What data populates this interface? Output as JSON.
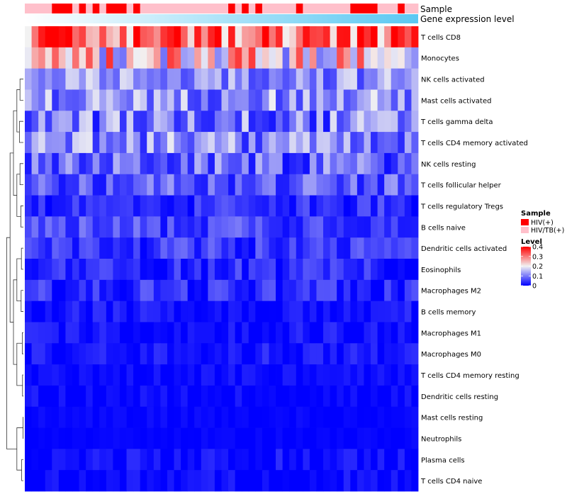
{
  "chart_data": {
    "type": "heatmap",
    "annotation_labels": [
      "Sample",
      "Gene expression level"
    ],
    "rows": [
      "T cells CD8",
      "Monocytes",
      "NK cells activated",
      "Mast cells activated",
      "T cells gamma delta",
      "T cells CD4 memory activated",
      "NK cells resting",
      "T cells follicular helper",
      "T cells regulatory  Tregs",
      "B cells naive",
      "Dendritic cells activated",
      "Eosinophils",
      "Macrophages M2",
      "B cells memory",
      "Macrophages M1",
      "Macrophages M0",
      "T cells CD4 memory resting",
      "Dendritic cells resting",
      "Mast cells resting",
      "Neutrophils",
      "Plasma cells",
      "T cells CD4 naive"
    ],
    "sample_groups": [
      1,
      1,
      1,
      1,
      0,
      0,
      0,
      1,
      0,
      1,
      0,
      1,
      0,
      0,
      0,
      1,
      0,
      1,
      1,
      1,
      1,
      1,
      1,
      1,
      1,
      1,
      1,
      1,
      1,
      1,
      0,
      1,
      0,
      1,
      0,
      1,
      1,
      1,
      1,
      1,
      0,
      1,
      1,
      1,
      1,
      1,
      1,
      1,
      0,
      0,
      0,
      0,
      1,
      1,
      1,
      0,
      1,
      1
    ],
    "legend": {
      "sample_title": "Sample",
      "sample_items": [
        {
          "label": "HIV(+)",
          "color": "#ff0000"
        },
        {
          "label": "HIV/TB(+)",
          "color": "#ffc0cb"
        }
      ],
      "level_title": "Level",
      "level_ticks": [
        {
          "value": 0.4,
          "label": "0.4"
        },
        {
          "value": 0.3,
          "label": "0.3"
        },
        {
          "value": 0.2,
          "label": "0.2"
        },
        {
          "value": 0.1,
          "label": "0.1"
        },
        {
          "value": 0,
          "label": "0"
        }
      ]
    },
    "color_scale": {
      "min": 0,
      "mid": 0.2,
      "max": 0.4,
      "low": "#0000ff",
      "midColor": "#f2f2f2",
      "high": "#ff0000"
    },
    "expression_gradient": {
      "from": "#5bc8f2",
      "to": "#ffffff"
    },
    "row_means": [
      0.32,
      0.22,
      0.12,
      0.12,
      0.1,
      0.11,
      0.08,
      0.07,
      0.035,
      0.06,
      0.045,
      0.03,
      0.035,
      0.012,
      0.012,
      0.012,
      0.006,
      0.006,
      0.003,
      0.002,
      0.008,
      0.006
    ],
    "row_spreads": [
      0.12,
      0.14,
      0.07,
      0.08,
      0.09,
      0.08,
      0.07,
      0.06,
      0.04,
      0.05,
      0.045,
      0.04,
      0.045,
      0.03,
      0.03,
      0.03,
      0.02,
      0.02,
      0.01,
      0.008,
      0.03,
      0.025
    ],
    "dendrogram": [
      {
        "a": 18,
        "b": 19,
        "h": 0.006
      },
      {
        "a": 20,
        "b": 21,
        "h": 0.03
      },
      {
        "a": 16,
        "b": 17,
        "h": 0.015
      },
      {
        "a": 14,
        "b": 15,
        "h": 0.02
      },
      {
        "a": 12,
        "b": 13,
        "h": 0.04
      },
      {
        "a": 10,
        "b": 11,
        "h": 0.035
      },
      {
        "a": 8,
        "b": 9,
        "h": 0.045
      },
      {
        "a": 6,
        "b": 7,
        "h": 0.06
      },
      {
        "a": 4,
        "b": 5,
        "h": 0.07
      },
      {
        "a": 2,
        "b": 3,
        "h": 0.06
      }
    ]
  }
}
